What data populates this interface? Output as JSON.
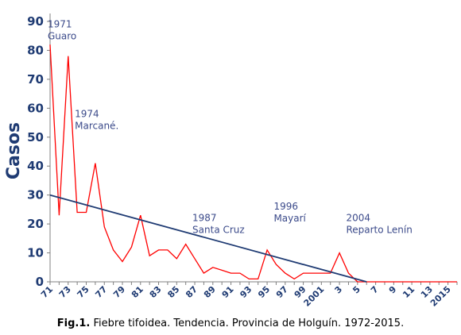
{
  "chart_data": {
    "type": "line",
    "ylabel": "Casos",
    "ylim": [
      0,
      90
    ],
    "yticks": [
      0,
      10,
      20,
      30,
      40,
      50,
      60,
      70,
      80,
      90
    ],
    "x": [
      1971,
      1972,
      1973,
      1974,
      1975,
      1976,
      1977,
      1978,
      1979,
      1980,
      1981,
      1982,
      1983,
      1984,
      1985,
      1986,
      1987,
      1988,
      1989,
      1990,
      1991,
      1992,
      1993,
      1994,
      1995,
      1996,
      1997,
      1998,
      1999,
      2000,
      2001,
      2002,
      2003,
      2004,
      2005,
      2006,
      2007,
      2008,
      2009,
      2010,
      2011,
      2012,
      2013,
      2014,
      2015,
      2016
    ],
    "xtick_labels": [
      "71",
      "73",
      "75",
      "77",
      "79",
      "81",
      "83",
      "85",
      "87",
      "89",
      "91",
      "93",
      "95",
      "97",
      "99",
      "2001",
      "3",
      "5",
      "7",
      "9",
      "11",
      "13",
      "2015"
    ],
    "xtick_years": [
      1971,
      1973,
      1975,
      1977,
      1979,
      1981,
      1983,
      1985,
      1987,
      1989,
      1991,
      1993,
      1995,
      1997,
      1999,
      2001,
      2003,
      2005,
      2007,
      2009,
      2011,
      2013,
      2015
    ],
    "series": [
      {
        "color": "#ff0000",
        "values": [
          82,
          23,
          78,
          24,
          24,
          41,
          19,
          11,
          7,
          12,
          23,
          9,
          11,
          11,
          8,
          13,
          8,
          3,
          5,
          4,
          3,
          3,
          1,
          1,
          11,
          6,
          3,
          1,
          3,
          3,
          3,
          3,
          10,
          3,
          0,
          0,
          0,
          0,
          0,
          0,
          0,
          0,
          0,
          0,
          0,
          0
        ]
      },
      {
        "color": "#1f3b73",
        "x": [
          1971,
          2006
        ],
        "values": [
          30,
          0
        ]
      }
    ],
    "annotations": [
      {
        "year_line": "1971",
        "place_line": "Guaro",
        "x": 1971,
        "y": 88
      },
      {
        "year_line": "1974",
        "place_line": "Marcané.",
        "x": 1974,
        "y": 57
      },
      {
        "year_line": "1987",
        "place_line": "Santa Cruz",
        "x": 1987,
        "y": 21
      },
      {
        "year_line": "1996",
        "place_line": "Mayarí",
        "x": 1996,
        "y": 25
      },
      {
        "year_line": "2004",
        "place_line": "Reparto Lenín",
        "x": 2004,
        "y": 21
      }
    ]
  },
  "caption": {
    "prefix": "Fig.1.",
    "text": " Fiebre tifoidea. Tendencia. Provincia de Holguín. 1972-2015."
  }
}
